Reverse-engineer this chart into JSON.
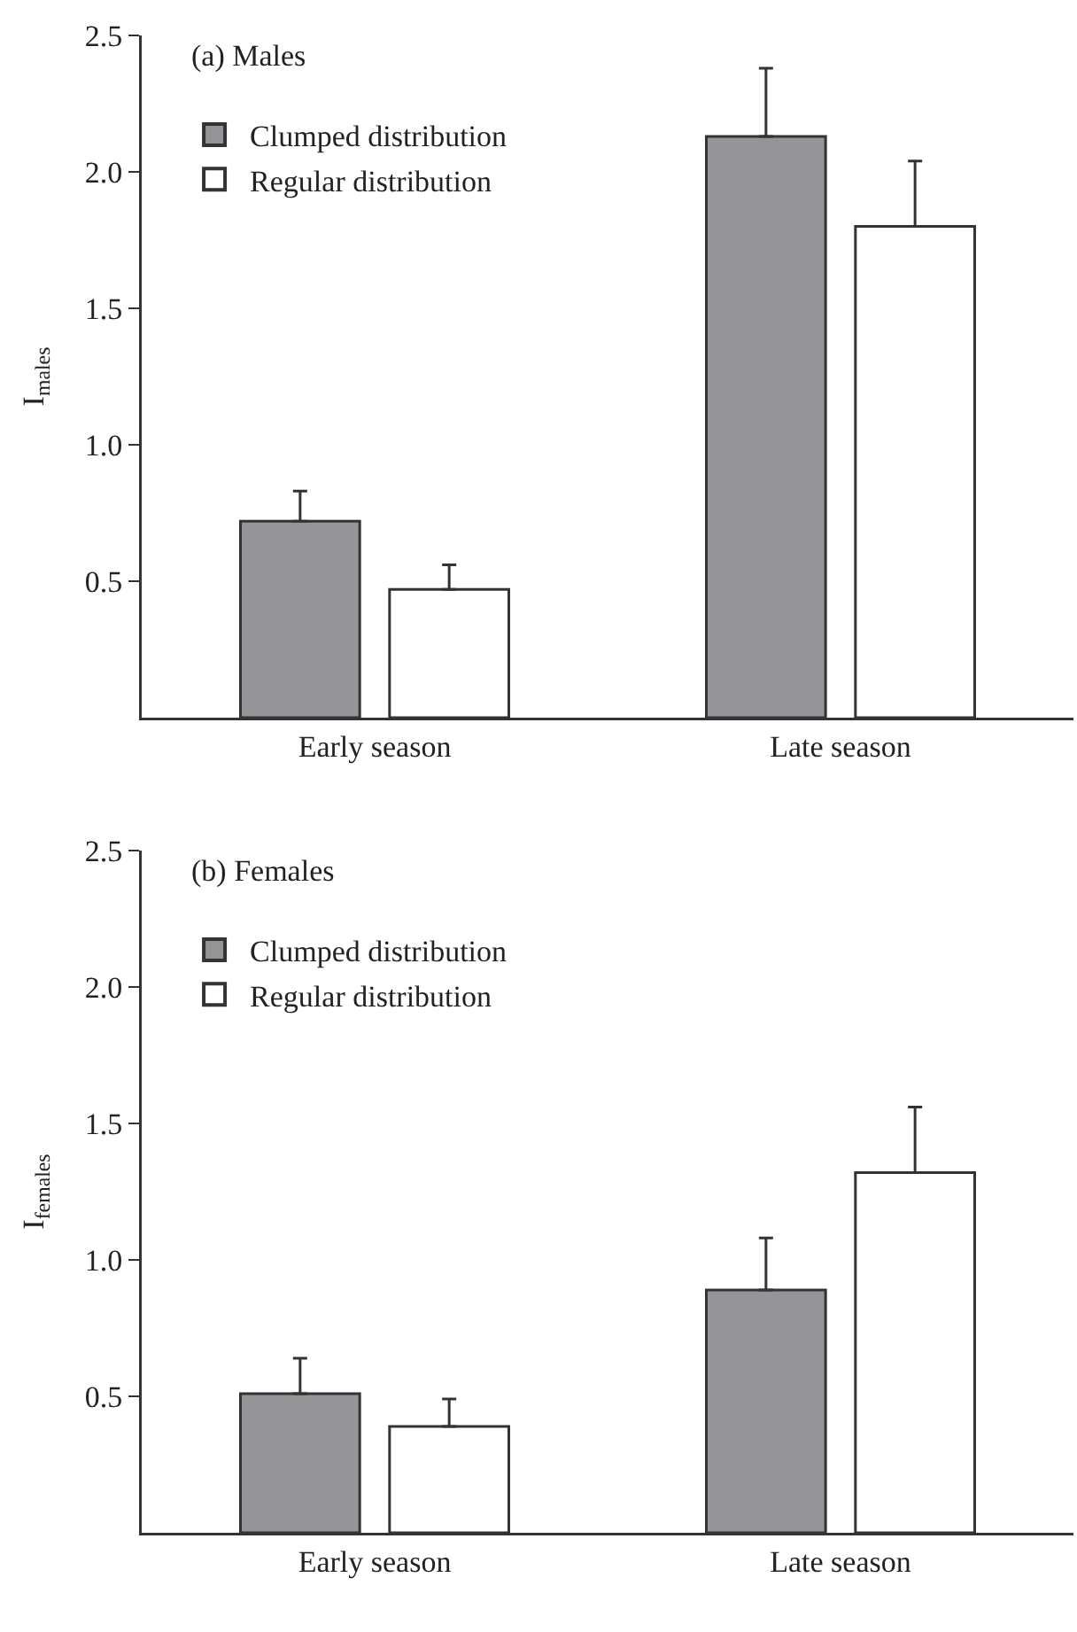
{
  "chart_data": [
    {
      "type": "bar",
      "title": "(a) Males",
      "ylabel": "I$_{males}$",
      "categories": [
        "Early season",
        "Late season"
      ],
      "ylim": [
        0,
        2.5
      ],
      "yticks": [
        {
          "value": 0.5,
          "label": "0.5"
        },
        {
          "value": 1,
          "label": "1.0"
        },
        {
          "value": 1.5,
          "label": "1.5"
        },
        {
          "value": 2,
          "label": "2.0"
        },
        {
          "value": 2.5,
          "label": "2.5"
        }
      ],
      "legend": "top left",
      "grid": false,
      "series": [
        {
          "name": "Clumped distribution",
          "color": "#939598",
          "values": [
            0.72,
            2.13
          ],
          "errors": [
            [
              0.72,
              0.83
            ],
            [
              2.13,
              2.38
            ]
          ]
        },
        {
          "name": "Regular distribution",
          "color": "#ffffff",
          "values": [
            0.47,
            1.8
          ],
          "errors": [
            [
              0.47,
              0.56
            ],
            [
              1.8,
              2.04
            ]
          ]
        }
      ]
    },
    {
      "type": "bar",
      "title": "(b) Females",
      "ylabel": "I$_{females}$",
      "categories": [
        "Early season",
        "Late season"
      ],
      "ylim": [
        0,
        2.5
      ],
      "yticks": [
        {
          "value": 0.5,
          "label": "0.5"
        },
        {
          "value": 1,
          "label": "1.0"
        },
        {
          "value": 1.5,
          "label": "1.5"
        },
        {
          "value": 2,
          "label": "2.0"
        },
        {
          "value": 2.5,
          "label": "2.5"
        }
      ],
      "legend": "top left",
      "grid": false,
      "series": [
        {
          "name": "Clumped distribution",
          "color": "#939598",
          "values": [
            0.51,
            0.89
          ],
          "errors": [
            [
              0.51,
              0.64
            ],
            [
              0.89,
              1.08
            ]
          ]
        },
        {
          "name": "Regular distribution",
          "color": "#ffffff",
          "values": [
            0.39,
            1.32
          ],
          "errors": [
            [
              0.39,
              0.49
            ],
            [
              1.32,
              1.56
            ]
          ]
        }
      ]
    }
  ]
}
